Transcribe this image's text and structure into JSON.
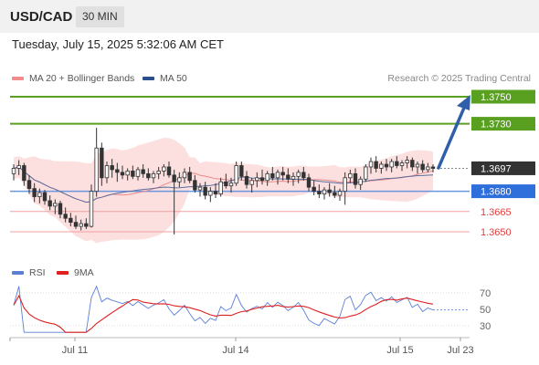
{
  "header": {
    "symbol": "USD/CAD",
    "timeframe": "30 MIN"
  },
  "datetime": "Tuesday, July 15, 2025 5:32:06 AM CET",
  "legend": {
    "ma20": {
      "label": "MA 20 + Bollinger Bands",
      "color": "#f28b8b"
    },
    "ma50": {
      "label": "MA 50",
      "color": "#2b4f8c"
    },
    "credit": "Research © 2025 Trading Central"
  },
  "rsi_legend": {
    "rsi": {
      "label": "RSI",
      "color": "#5a7fd6"
    },
    "ma9": {
      "label": "9MA",
      "color": "#e02020"
    }
  },
  "chart_data": {
    "type": "candlestick",
    "price_levels": [
      {
        "value": "1.3750",
        "kind": "resistance",
        "color": "#5aa020"
      },
      {
        "value": "1.3730",
        "kind": "resistance",
        "color": "#5aa020"
      },
      {
        "value": "1.3697",
        "kind": "current",
        "color": "#333333"
      },
      {
        "value": "1.3680",
        "kind": "pivot",
        "color": "#2f6fdc"
      },
      {
        "value": "1.3665",
        "kind": "support",
        "color": "#e04040"
      },
      {
        "value": "1.3650",
        "kind": "support",
        "color": "#e04040"
      }
    ],
    "rsi_levels": [
      "70",
      "50",
      "30"
    ],
    "x_labels": [
      "Jul 11",
      "Jul 14",
      "Jul 15",
      "Jul 23"
    ],
    "ylim": [
      1.3635,
      1.3765
    ],
    "candles": [
      [
        1.3693,
        1.37,
        1.3688,
        1.3697
      ],
      [
        1.3697,
        1.3703,
        1.3692,
        1.3699
      ],
      [
        1.3699,
        1.3701,
        1.3684,
        1.3688
      ],
      [
        1.3688,
        1.3692,
        1.3678,
        1.3682
      ],
      [
        1.3682,
        1.3686,
        1.3672,
        1.3676
      ],
      [
        1.3676,
        1.3682,
        1.3671,
        1.3679
      ],
      [
        1.3679,
        1.3681,
        1.367,
        1.3673
      ],
      [
        1.3673,
        1.3677,
        1.3666,
        1.3669
      ],
      [
        1.3669,
        1.3674,
        1.3663,
        1.3671
      ],
      [
        1.3671,
        1.3673,
        1.366,
        1.3663
      ],
      [
        1.3663,
        1.3668,
        1.3657,
        1.366
      ],
      [
        1.366,
        1.3664,
        1.3654,
        1.3657
      ],
      [
        1.3657,
        1.3662,
        1.3652,
        1.3654
      ],
      [
        1.3654,
        1.3659,
        1.3651,
        1.3656
      ],
      [
        1.3656,
        1.366,
        1.3652,
        1.3654
      ],
      [
        1.3654,
        1.3685,
        1.3653,
        1.368
      ],
      [
        1.368,
        1.3727,
        1.3676,
        1.3712
      ],
      [
        1.3712,
        1.3716,
        1.3684,
        1.369
      ],
      [
        1.369,
        1.3702,
        1.3686,
        1.3699
      ],
      [
        1.3699,
        1.3704,
        1.369,
        1.3696
      ],
      [
        1.3696,
        1.3701,
        1.3687,
        1.3694
      ],
      [
        1.3694,
        1.3699,
        1.3689,
        1.3692
      ],
      [
        1.3692,
        1.3697,
        1.3688,
        1.3695
      ],
      [
        1.3695,
        1.3699,
        1.3689,
        1.3691
      ],
      [
        1.3691,
        1.3698,
        1.3688,
        1.3696
      ],
      [
        1.3696,
        1.37,
        1.369,
        1.3693
      ],
      [
        1.3693,
        1.3697,
        1.3688,
        1.369
      ],
      [
        1.369,
        1.3695,
        1.3686,
        1.3693
      ],
      [
        1.3693,
        1.3698,
        1.3689,
        1.3695
      ],
      [
        1.3695,
        1.37,
        1.3691,
        1.3698
      ],
      [
        1.3698,
        1.3702,
        1.369,
        1.3692
      ],
      [
        1.3692,
        1.3696,
        1.3648,
        1.3687
      ],
      [
        1.3687,
        1.3694,
        1.3683,
        1.369
      ],
      [
        1.369,
        1.3697,
        1.3686,
        1.3694
      ],
      [
        1.3694,
        1.3698,
        1.3686,
        1.3688
      ],
      [
        1.3688,
        1.3692,
        1.3679,
        1.3681
      ],
      [
        1.3681,
        1.3686,
        1.3676,
        1.3683
      ],
      [
        1.3683,
        1.3687,
        1.3674,
        1.3677
      ],
      [
        1.3677,
        1.3683,
        1.3672,
        1.368
      ],
      [
        1.368,
        1.3686,
        1.3675,
        1.3678
      ],
      [
        1.3678,
        1.369,
        1.3676,
        1.3687
      ],
      [
        1.3687,
        1.3693,
        1.3682,
        1.3684
      ],
      [
        1.3684,
        1.369,
        1.3679,
        1.3686
      ],
      [
        1.3686,
        1.3702,
        1.3684,
        1.3699
      ],
      [
        1.3699,
        1.3702,
        1.3688,
        1.3691
      ],
      [
        1.3691,
        1.3695,
        1.3682,
        1.3685
      ],
      [
        1.3685,
        1.369,
        1.3679,
        1.3688
      ],
      [
        1.3688,
        1.3694,
        1.3683,
        1.369
      ],
      [
        1.369,
        1.3696,
        1.3685,
        1.3688
      ],
      [
        1.3688,
        1.3695,
        1.3684,
        1.3693
      ],
      [
        1.3693,
        1.3698,
        1.3688,
        1.369
      ],
      [
        1.369,
        1.3696,
        1.3685,
        1.3694
      ],
      [
        1.3694,
        1.3698,
        1.3688,
        1.3692
      ],
      [
        1.3692,
        1.3697,
        1.3686,
        1.3689
      ],
      [
        1.3689,
        1.3694,
        1.3684,
        1.3691
      ],
      [
        1.3691,
        1.3696,
        1.3686,
        1.3694
      ],
      [
        1.3694,
        1.3698,
        1.3688,
        1.369
      ],
      [
        1.369,
        1.3693,
        1.368,
        1.3683
      ],
      [
        1.3683,
        1.3688,
        1.3677,
        1.368
      ],
      [
        1.368,
        1.3685,
        1.3675,
        1.3678
      ],
      [
        1.3678,
        1.3683,
        1.3674,
        1.3681
      ],
      [
        1.3681,
        1.3686,
        1.3676,
        1.3679
      ],
      [
        1.3679,
        1.3684,
        1.3675,
        1.3677
      ],
      [
        1.3677,
        1.3682,
        1.3673,
        1.368
      ],
      [
        1.368,
        1.3694,
        1.367,
        1.369
      ],
      [
        1.369,
        1.3696,
        1.3686,
        1.3693
      ],
      [
        1.3693,
        1.3697,
        1.3682,
        1.3685
      ],
      [
        1.3685,
        1.3691,
        1.3681,
        1.3689
      ],
      [
        1.3689,
        1.37,
        1.3687,
        1.3698
      ],
      [
        1.3698,
        1.3705,
        1.3693,
        1.3702
      ],
      [
        1.3702,
        1.3706,
        1.3694,
        1.3697
      ],
      [
        1.3697,
        1.3702,
        1.3693,
        1.37
      ],
      [
        1.37,
        1.3704,
        1.3695,
        1.3698
      ],
      [
        1.3698,
        1.3704,
        1.3694,
        1.3702
      ],
      [
        1.3702,
        1.3706,
        1.3697,
        1.3699
      ],
      [
        1.3699,
        1.3703,
        1.3695,
        1.3701
      ],
      [
        1.3701,
        1.3706,
        1.3697,
        1.3703
      ],
      [
        1.3703,
        1.3705,
        1.3695,
        1.3698
      ],
      [
        1.3698,
        1.3702,
        1.3693,
        1.37
      ],
      [
        1.37,
        1.3703,
        1.3694,
        1.3696
      ],
      [
        1.3696,
        1.3701,
        1.3694,
        1.3698
      ],
      [
        1.3698,
        1.37,
        1.3694,
        1.3697
      ]
    ]
  }
}
